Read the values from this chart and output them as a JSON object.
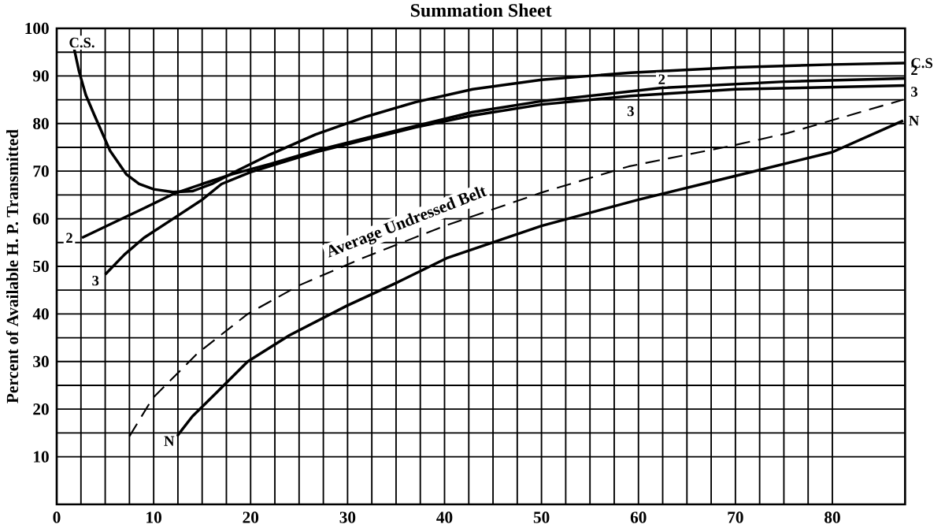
{
  "chart_data": {
    "type": "line",
    "title": "Summation Sheet",
    "ylabel": "Percent of Available H. P. Transmitted",
    "xlim": [
      0,
      87.5
    ],
    "ylim": [
      0,
      100
    ],
    "xticks": [
      0,
      10,
      20,
      30,
      40,
      50,
      60,
      70,
      80
    ],
    "yticks": [
      10,
      20,
      30,
      40,
      50,
      60,
      70,
      80,
      90,
      100
    ],
    "grid": true,
    "legend": false,
    "marker": "none",
    "series": [
      {
        "name": "C.S",
        "color": "#000000",
        "line_style": "solid",
        "x": [
          1.8,
          2.3,
          3,
          3.9,
          5.5,
          7.2,
          8.5,
          10,
          12,
          14,
          16,
          18.5,
          22,
          26.7,
          32,
          37,
          42.9,
          50,
          59.2,
          70,
          80,
          87.5
        ],
        "values": [
          95.7,
          91,
          86,
          81.7,
          74.3,
          69.3,
          67.3,
          66.2,
          65.6,
          65.8,
          67.3,
          70,
          73.5,
          77.7,
          81.5,
          84.5,
          87.2,
          89.2,
          90.7,
          91.8,
          92.4,
          92.7
        ]
      },
      {
        "name": "2",
        "color": "#000000",
        "line_style": "solid",
        "x": [
          2.6,
          6,
          9,
          12,
          15,
          18,
          22,
          26.7,
          32,
          37,
          42.9,
          50,
          62.4,
          75,
          87.5
        ],
        "values": [
          56,
          59.3,
          62.2,
          65.2,
          67.3,
          69.3,
          71.5,
          74.3,
          77,
          79.5,
          82.4,
          84.7,
          87.5,
          88.8,
          89.5
        ]
      },
      {
        "name": "3",
        "color": "#000000",
        "line_style": "solid",
        "x": [
          5,
          7,
          9,
          12,
          15,
          17,
          20,
          26.7,
          32,
          37,
          42.9,
          50,
          59.2,
          70,
          87.5
        ],
        "values": [
          48.3,
          52.5,
          56,
          60,
          64,
          67.3,
          69.8,
          74,
          76.7,
          79.2,
          81.7,
          84,
          85.8,
          87.2,
          88
        ]
      },
      {
        "name": "Average Undressed Belt",
        "color": "#000000",
        "line_style": "dashed",
        "x": [
          7.5,
          9.9,
          14.5,
          19.7,
          25,
          31.5,
          40,
          50,
          59,
          70,
          75.4,
          87.3
        ],
        "values": [
          14.3,
          22.3,
          31.7,
          40,
          46,
          51.7,
          58.5,
          65.5,
          71,
          75.5,
          78,
          85
        ]
      },
      {
        "name": "N",
        "color": "#000000",
        "line_style": "solid",
        "x": [
          12.4,
          14,
          16.5,
          19.7,
          24,
          29.9,
          35,
          40.2,
          50,
          60,
          70,
          80,
          87.3
        ],
        "values": [
          14.3,
          18.5,
          23.5,
          30,
          35.5,
          41.7,
          46.5,
          51.7,
          58.5,
          64,
          69,
          74,
          80.6
        ]
      }
    ],
    "annotations": [
      {
        "text": "C.S.",
        "x": 2.6,
        "y": 97
      },
      {
        "text": "2",
        "x": 1.3,
        "y": 56
      },
      {
        "text": "3",
        "x": 4,
        "y": 47
      },
      {
        "text": "N",
        "x": 11.6,
        "y": 13.3
      },
      {
        "text": "2",
        "x": 62.4,
        "y": 89.3
      },
      {
        "text": "3",
        "x": 59.2,
        "y": 82.6
      }
    ]
  }
}
